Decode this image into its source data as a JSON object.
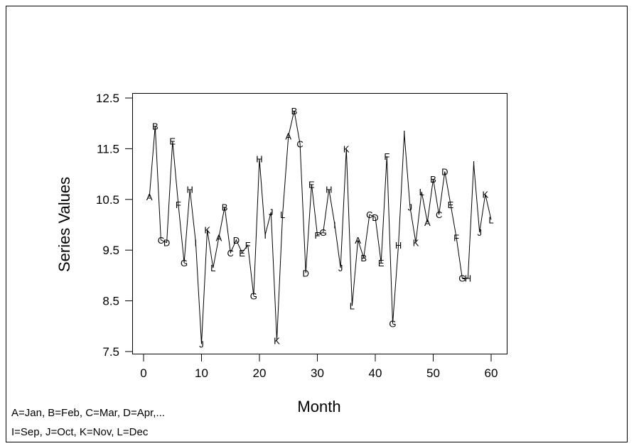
{
  "chart_data": {
    "type": "line",
    "title": "",
    "xlabel": "Month",
    "ylabel": "Series Values",
    "xlim": [
      -1,
      62
    ],
    "ylim": [
      7.4,
      12.6
    ],
    "x_ticks": [
      0,
      10,
      20,
      30,
      40,
      50,
      60
    ],
    "y_ticks": [
      7.5,
      8.5,
      9.5,
      10.5,
      11.5,
      12.5
    ],
    "y_tick_labels": [
      "7.5",
      "8.5",
      "9.5",
      "10.5",
      "11.5",
      "12.5"
    ],
    "grid": false,
    "x": [
      1,
      2,
      3,
      4,
      5,
      6,
      7,
      8,
      9,
      10,
      11,
      12,
      13,
      14,
      15,
      16,
      17,
      18,
      19,
      20,
      21,
      22,
      23,
      24,
      25,
      26,
      27,
      28,
      29,
      30,
      31,
      32,
      33,
      34,
      35,
      36,
      37,
      38,
      39,
      40,
      41,
      42,
      43,
      44,
      45,
      46,
      47,
      48,
      49,
      50,
      51,
      52,
      53,
      54,
      55,
      56,
      57,
      58,
      59,
      60
    ],
    "y": [
      10.55,
      11.95,
      9.7,
      9.65,
      11.65,
      10.4,
      9.25,
      10.7,
      9.65,
      7.65,
      9.9,
      9.15,
      9.75,
      10.35,
      9.45,
      9.7,
      9.45,
      9.6,
      8.6,
      11.3,
      9.8,
      10.25,
      7.72,
      10.2,
      11.75,
      12.25,
      11.6,
      9.05,
      10.8,
      9.8,
      9.85,
      10.7,
      10.0,
      9.15,
      11.5,
      8.4,
      9.7,
      9.35,
      10.2,
      10.15,
      9.25,
      11.35,
      8.05,
      9.6,
      11.8,
      10.35,
      9.65,
      10.65,
      10.05,
      10.9,
      10.2,
      11.05,
      10.4,
      9.75,
      8.95,
      8.95,
      11.2,
      9.85,
      10.6,
      10.1
    ],
    "point_labels": [
      "A",
      "B",
      "C",
      "D",
      "E",
      "F",
      "G",
      "H",
      "I",
      "J",
      "K",
      "L",
      "A",
      "B",
      "C",
      "D",
      "E",
      "F",
      "G",
      "H",
      "I",
      "J",
      "K",
      "L",
      "A",
      "B",
      "C",
      "D",
      "E",
      "F",
      "G",
      "H",
      "I",
      "J",
      "K",
      "L",
      "A",
      "B",
      "C",
      "D",
      "E",
      "F",
      "G",
      "H",
      "I",
      "J",
      "K",
      "L",
      "A",
      "B",
      "C",
      "D",
      "E",
      "F",
      "G",
      "H",
      "I",
      "J",
      "K",
      "L"
    ],
    "annotations": [
      "A=Jan, B=Feb, C=Mar, D=Apr,...",
      "I=Sep, J=Oct, K=Nov, L=Dec"
    ]
  }
}
